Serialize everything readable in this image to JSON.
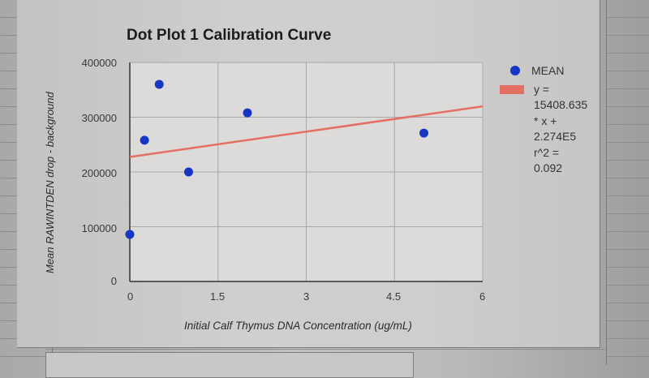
{
  "chart_data": {
    "type": "scatter",
    "title": "Dot Plot 1 Calibration Curve",
    "xlabel": "Initial Calf Thymus DNA Concentration (ug/mL)",
    "ylabel": "Mean RAWINTDEN drop - background",
    "xlim": [
      0,
      6
    ],
    "ylim": [
      0,
      400000
    ],
    "x_ticks": [
      "0",
      "1.5",
      "3",
      "4.5",
      "6"
    ],
    "y_ticks": [
      "0",
      "100000",
      "200000",
      "300000",
      "400000"
    ],
    "grid": true,
    "legend_position": "right",
    "series": [
      {
        "name": "MEAN",
        "color": "#1636c4",
        "points": [
          {
            "x": 0,
            "y": 86000
          },
          {
            "x": 0.25,
            "y": 258000
          },
          {
            "x": 0.5,
            "y": 360000
          },
          {
            "x": 1.0,
            "y": 200000
          },
          {
            "x": 2.0,
            "y": 308000
          },
          {
            "x": 5.0,
            "y": 271000
          }
        ]
      },
      {
        "name": "trendline",
        "type": "line",
        "color": "#e46f65",
        "slope": 15408.635,
        "intercept": 227400,
        "r_squared": 0.092
      }
    ]
  },
  "legend": {
    "series_label": "MEAN",
    "trend_lines": [
      "y =",
      "15408.635",
      "* x +",
      "2.274E5",
      "r^2 =",
      "0.092"
    ]
  }
}
